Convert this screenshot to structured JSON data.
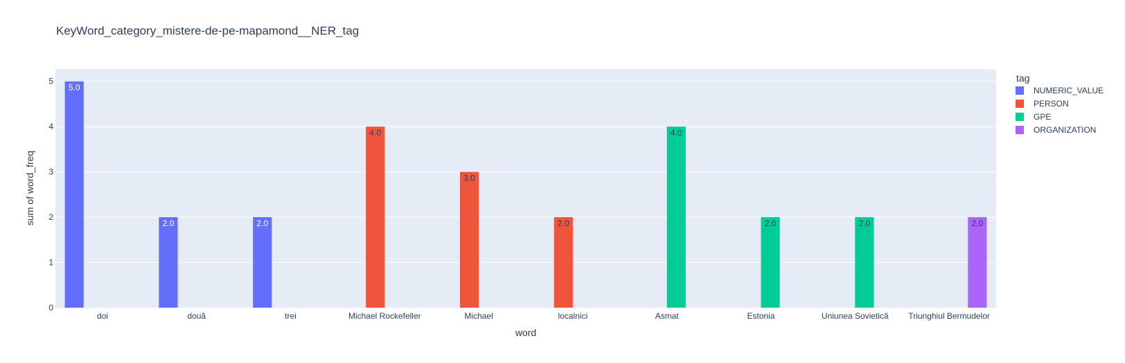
{
  "chart_data": {
    "type": "bar",
    "title": "KeyWord_category_mistere-de-pe-mapamond__NER_tag",
    "xlabel": "word",
    "ylabel": "sum of word_freq",
    "ylim": [
      0,
      5.27
    ],
    "yticks": [
      0,
      1,
      2,
      3,
      4,
      5
    ],
    "grid": true,
    "barmode": "group",
    "categories": [
      "doi",
      "două",
      "trei",
      "Michael Rockefeller",
      "Michael",
      "localnici",
      "Asmat",
      "Estonia",
      "Uniunea Sovietică",
      "Triunghiul Bermudelor"
    ],
    "legend": {
      "title": "tag",
      "placement": "top-right"
    },
    "series": [
      {
        "name": "NUMERIC_VALUE",
        "color": "#636efa",
        "label_color": "#ffffff",
        "values": [
          5,
          2,
          2,
          null,
          null,
          null,
          null,
          null,
          null,
          null
        ],
        "labels": [
          "5.0",
          "2.0",
          "2.0",
          null,
          null,
          null,
          null,
          null,
          null,
          null
        ]
      },
      {
        "name": "PERSON",
        "color": "#ef553b",
        "label_color": "#2a3f5f",
        "values": [
          null,
          null,
          null,
          4,
          3,
          2,
          null,
          null,
          null,
          null
        ],
        "labels": [
          null,
          null,
          null,
          "4.0",
          "3.0",
          "2.0",
          null,
          null,
          null,
          null
        ]
      },
      {
        "name": "GPE",
        "color": "#00cc96",
        "label_color": "#2a3f5f",
        "values": [
          null,
          null,
          null,
          null,
          null,
          null,
          4,
          2,
          2,
          null
        ],
        "labels": [
          null,
          null,
          null,
          null,
          null,
          null,
          "4.0",
          "2.0",
          "2.0",
          null
        ]
      },
      {
        "name": "ORGANIZATION",
        "color": "#ab63fa",
        "label_color": "#2a3f5f",
        "values": [
          null,
          null,
          null,
          null,
          null,
          null,
          null,
          null,
          null,
          2
        ],
        "labels": [
          null,
          null,
          null,
          null,
          null,
          null,
          null,
          null,
          null,
          "2.0"
        ]
      }
    ]
  }
}
